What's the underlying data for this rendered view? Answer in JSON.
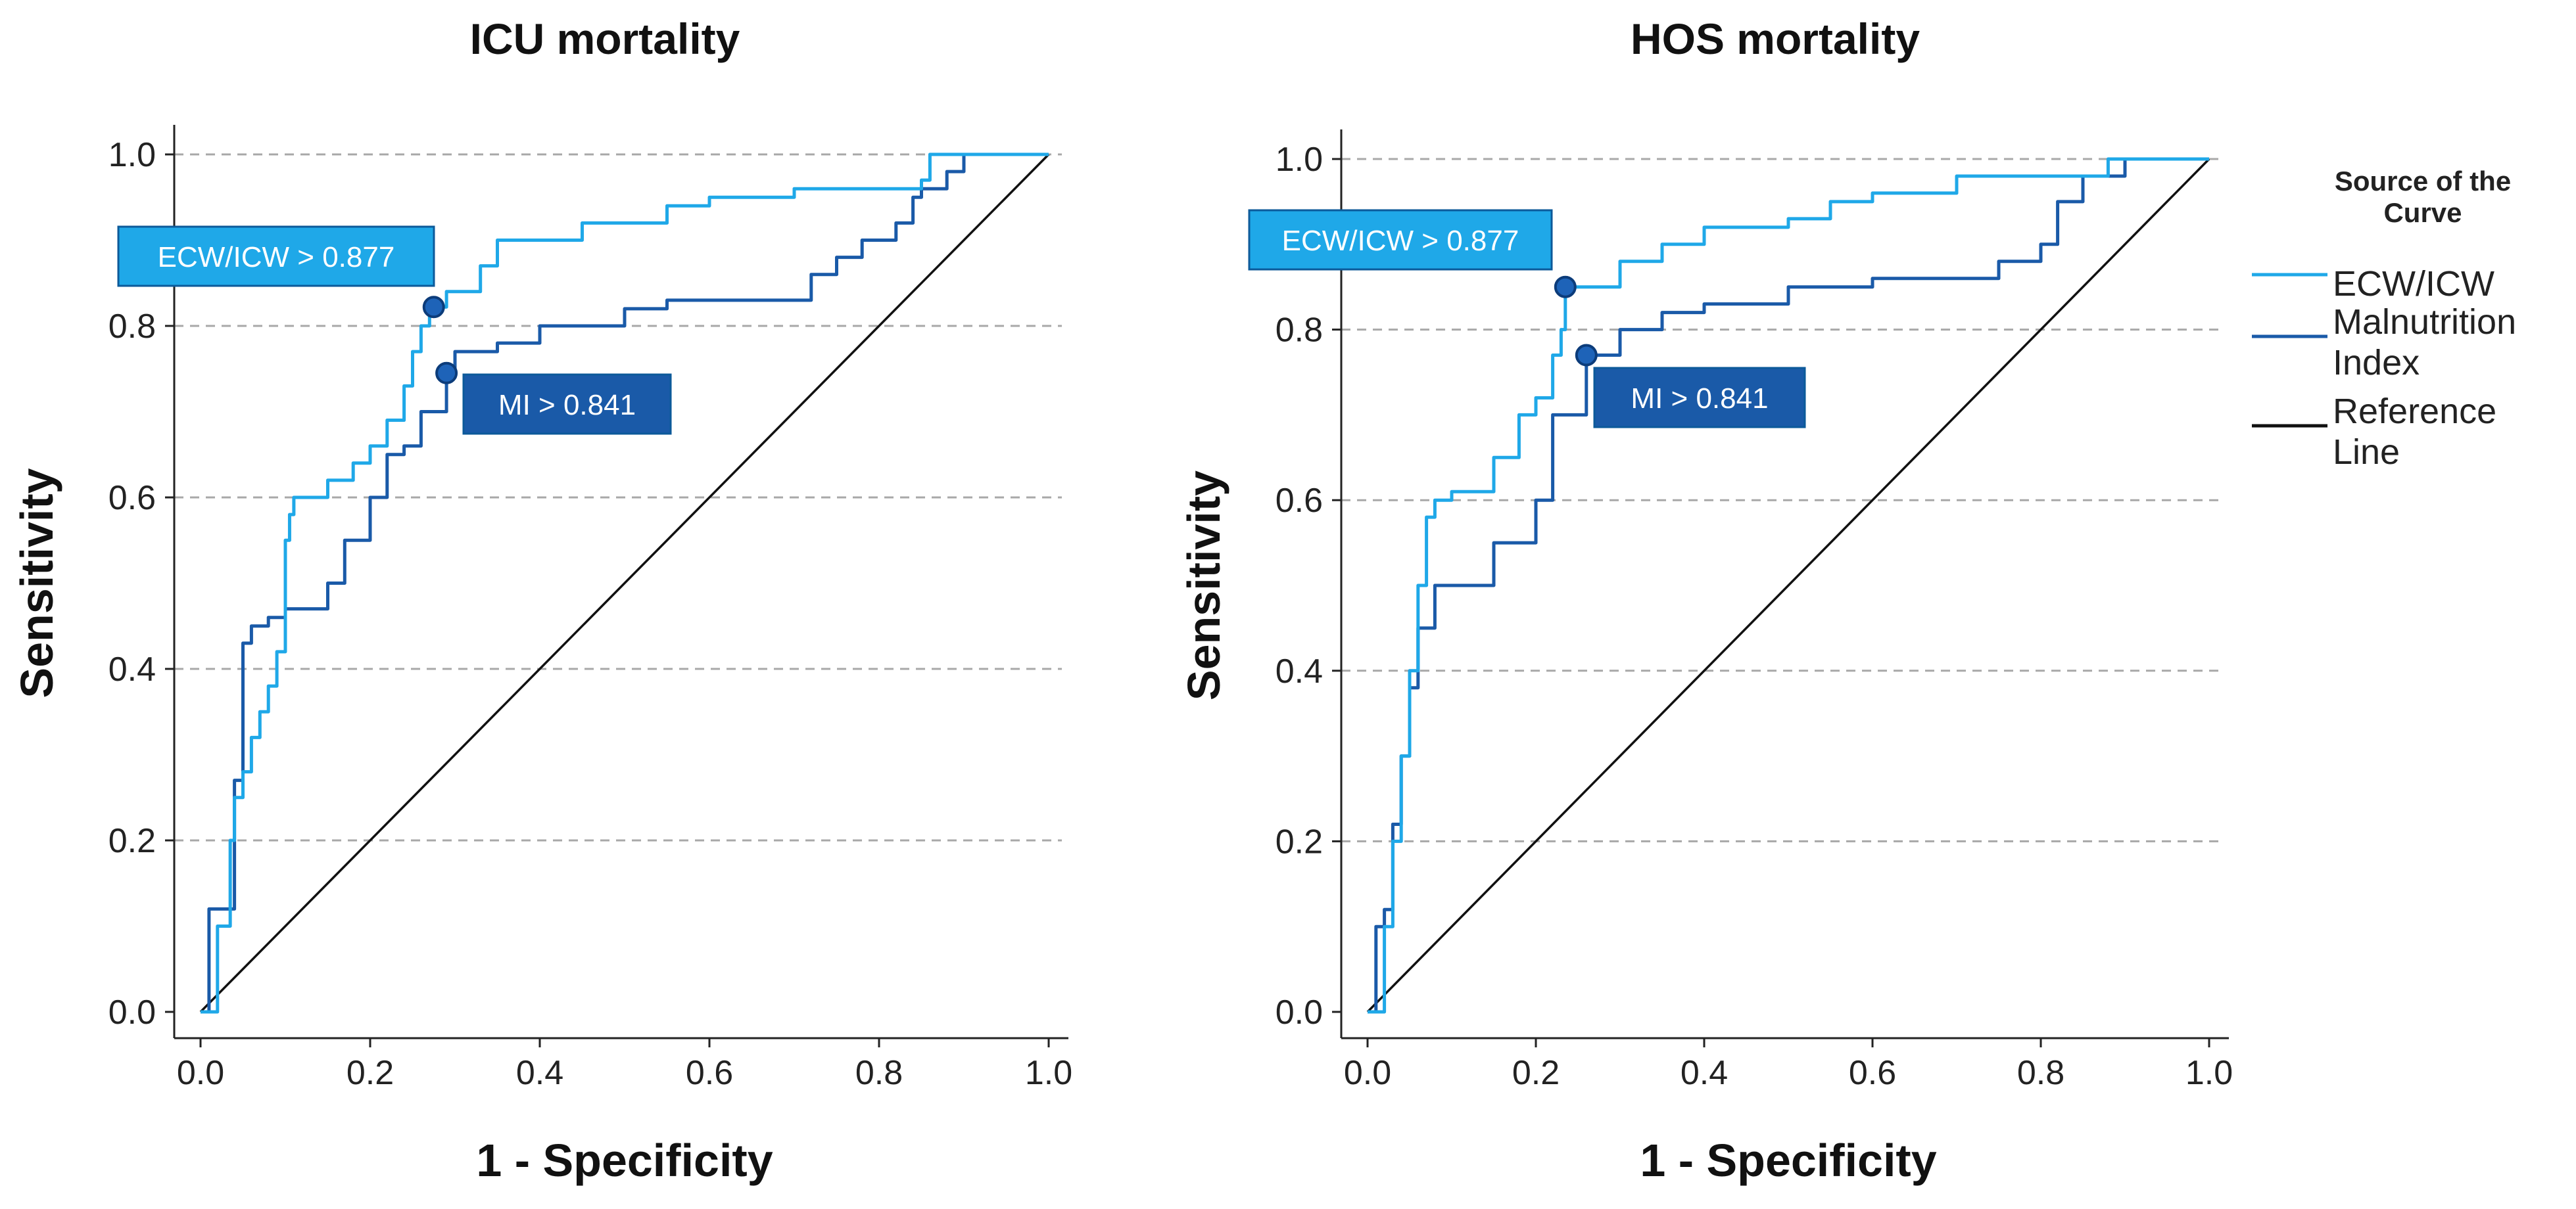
{
  "chart_data": [
    {
      "type": "line",
      "title": "ICU mortality",
      "xlabel": "1 - Specificity",
      "ylabel": "Sensitivity",
      "xlim": [
        0,
        1
      ],
      "ylim": [
        0,
        1
      ],
      "xticks": [
        "0.0",
        "0.2",
        "0.4",
        "0.6",
        "0.8",
        "1.0"
      ],
      "yticks": [
        "0.0",
        "0.2",
        "0.4",
        "0.6",
        "0.8",
        "1.0"
      ],
      "grid": "horizontal dashed",
      "series": [
        {
          "name": "ECW/ICW",
          "color": "#1fa8e8",
          "x": [
            0,
            0.02,
            0.035,
            0.04,
            0.05,
            0.06,
            0.07,
            0.08,
            0.09,
            0.1,
            0.105,
            0.11,
            0.15,
            0.18,
            0.2,
            0.22,
            0.24,
            0.25,
            0.26,
            0.27,
            0.275,
            0.29,
            0.33,
            0.35,
            0.4,
            0.45,
            0.5,
            0.55,
            0.6,
            0.65,
            0.7,
            0.8,
            0.85,
            0.86,
            1.0
          ],
          "y": [
            0,
            0.1,
            0.2,
            0.25,
            0.28,
            0.32,
            0.35,
            0.38,
            0.42,
            0.55,
            0.58,
            0.6,
            0.62,
            0.64,
            0.66,
            0.69,
            0.73,
            0.77,
            0.8,
            0.82,
            0.822,
            0.84,
            0.87,
            0.9,
            0.9,
            0.92,
            0.92,
            0.94,
            0.95,
            0.95,
            0.96,
            0.96,
            0.97,
            1.0,
            1.0
          ]
        },
        {
          "name": "Malnutrition Index",
          "color": "#1a5aa8",
          "x": [
            0,
            0.01,
            0.03,
            0.04,
            0.05,
            0.06,
            0.08,
            0.1,
            0.15,
            0.17,
            0.2,
            0.22,
            0.24,
            0.26,
            0.28,
            0.29,
            0.3,
            0.35,
            0.4,
            0.5,
            0.55,
            0.6,
            0.7,
            0.72,
            0.75,
            0.78,
            0.8,
            0.82,
            0.84,
            0.85,
            0.88,
            0.9,
            1.0
          ],
          "y": [
            0,
            0.12,
            0.12,
            0.27,
            0.43,
            0.45,
            0.46,
            0.47,
            0.5,
            0.55,
            0.6,
            0.65,
            0.66,
            0.7,
            0.7,
            0.745,
            0.77,
            0.78,
            0.8,
            0.82,
            0.83,
            0.83,
            0.83,
            0.86,
            0.88,
            0.9,
            0.9,
            0.92,
            0.95,
            0.96,
            0.98,
            1.0,
            1.0
          ]
        },
        {
          "name": "Reference Line",
          "color": "#111111",
          "x": [
            0,
            1
          ],
          "y": [
            0,
            1
          ]
        }
      ],
      "annotations": [
        {
          "text": "ECW/ICW > 0.877",
          "x": 0.275,
          "y": 0.822,
          "fill": "#1fa8e8",
          "anchor": "upper-left"
        },
        {
          "text": "MI > 0.841",
          "x": 0.29,
          "y": 0.745,
          "fill": "#1a5aa8",
          "anchor": "lower-right"
        }
      ]
    },
    {
      "type": "line",
      "title": "HOS mortality",
      "xlabel": "1 - Specificity",
      "ylabel": "Sensitivity",
      "xlim": [
        0,
        1
      ],
      "ylim": [
        0,
        1
      ],
      "xticks": [
        "0.0",
        "0.2",
        "0.4",
        "0.6",
        "0.8",
        "1.0"
      ],
      "yticks": [
        "0.0",
        "0.2",
        "0.4",
        "0.6",
        "0.8",
        "1.0"
      ],
      "grid": "horizontal dashed",
      "series": [
        {
          "name": "ECW/ICW",
          "color": "#1fa8e8",
          "x": [
            0,
            0.02,
            0.03,
            0.04,
            0.05,
            0.06,
            0.07,
            0.08,
            0.1,
            0.15,
            0.18,
            0.2,
            0.22,
            0.23,
            0.235,
            0.25,
            0.3,
            0.35,
            0.4,
            0.5,
            0.55,
            0.6,
            0.7,
            0.8,
            0.88,
            1.0
          ],
          "y": [
            0,
            0.1,
            0.2,
            0.3,
            0.4,
            0.5,
            0.58,
            0.6,
            0.61,
            0.65,
            0.7,
            0.72,
            0.77,
            0.8,
            0.85,
            0.85,
            0.88,
            0.9,
            0.92,
            0.93,
            0.95,
            0.96,
            0.98,
            0.98,
            1.0,
            1.0
          ]
        },
        {
          "name": "Malnutrition Index",
          "color": "#1a5aa8",
          "x": [
            0,
            0.01,
            0.02,
            0.03,
            0.04,
            0.05,
            0.06,
            0.08,
            0.1,
            0.15,
            0.2,
            0.22,
            0.26,
            0.3,
            0.35,
            0.4,
            0.5,
            0.6,
            0.7,
            0.75,
            0.8,
            0.82,
            0.85,
            0.9,
            1.0
          ],
          "y": [
            0,
            0.1,
            0.12,
            0.22,
            0.3,
            0.38,
            0.45,
            0.5,
            0.5,
            0.55,
            0.6,
            0.7,
            0.77,
            0.8,
            0.82,
            0.83,
            0.85,
            0.86,
            0.86,
            0.88,
            0.9,
            0.95,
            0.98,
            1.0,
            1.0
          ]
        },
        {
          "name": "Reference Line",
          "color": "#111111",
          "x": [
            0,
            1
          ],
          "y": [
            0,
            1
          ]
        }
      ],
      "annotations": [
        {
          "text": "ECW/ICW > 0.877",
          "x": 0.235,
          "y": 0.85,
          "fill": "#1fa8e8",
          "anchor": "upper-left"
        },
        {
          "text": "MI > 0.841",
          "x": 0.26,
          "y": 0.77,
          "fill": "#1a5aa8",
          "anchor": "lower-right"
        }
      ]
    }
  ],
  "legend": {
    "title_line1": "Source of the",
    "title_line2": "Curve",
    "placement": "right",
    "items": [
      {
        "label_lines": [
          "ECW/ICW"
        ],
        "color": "#1fa8e8"
      },
      {
        "label_lines": [
          "Malnutrition",
          "Index"
        ],
        "color": "#1a5aa8"
      },
      {
        "label_lines": [
          "Reference",
          "Line"
        ],
        "color": "#111111"
      }
    ]
  },
  "colors": {
    "ecw_icw": "#1fa8e8",
    "malnutrition_index": "#1a5aa8",
    "reference": "#111111",
    "grid": "#a8a8a8",
    "axis": "#222222",
    "marker_fill": "#1e63b8",
    "marker_stroke": "#0c3c7a"
  }
}
